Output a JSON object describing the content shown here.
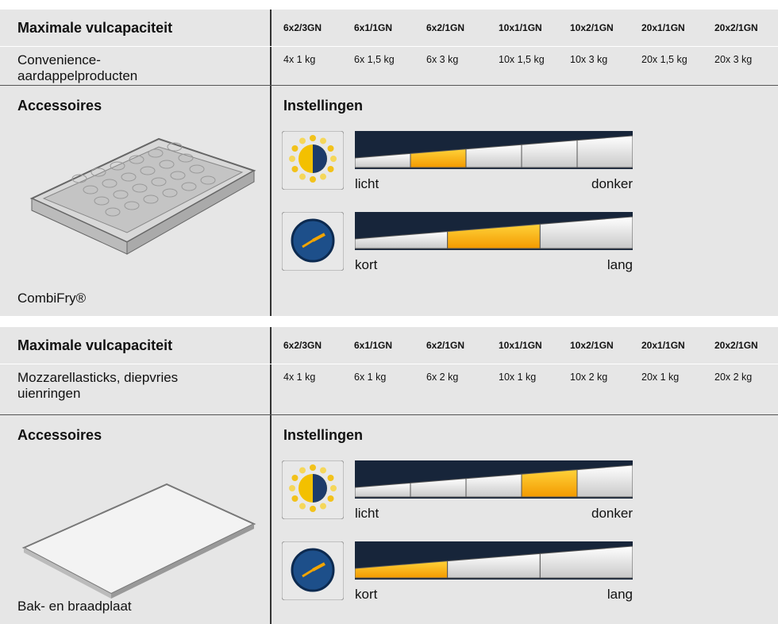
{
  "sections": [
    {
      "capacity": {
        "title": "Maximale vulcapaciteit",
        "columns": [
          "6x2/3GN",
          "6x1/1GN",
          "6x2/1GN",
          "10x1/1GN",
          "10x2/1GN",
          "20x1/1GN",
          "20x2/1GN"
        ],
        "product": "Convenience-aardappelproducten",
        "values": [
          "4x 1 kg",
          "6x 1,5 kg",
          "6x 3 kg",
          "10x 1,5 kg",
          "10x 3 kg",
          "20x 1,5 kg",
          "20x 3 kg"
        ]
      },
      "accessories": {
        "title": "Accessoires",
        "item": "CombiFry®"
      },
      "settings": {
        "title": "Instellingen",
        "browning": {
          "steps": 5,
          "selected": 2,
          "min_label": "licht",
          "max_label": "donker"
        },
        "time": {
          "steps": 3,
          "selected": 2,
          "min_label": "kort",
          "max_label": "lang"
        }
      }
    },
    {
      "capacity": {
        "title": "Maximale vulcapaciteit",
        "columns": [
          "6x2/3GN",
          "6x1/1GN",
          "6x2/1GN",
          "10x1/1GN",
          "10x2/1GN",
          "20x1/1GN",
          "20x2/1GN"
        ],
        "product": "Mozzarellasticks, diepvries uienringen",
        "values": [
          "4x 1 kg",
          "6x 1 kg",
          "6x 2 kg",
          "10x 1 kg",
          "10x 2 kg",
          "20x 1 kg",
          "20x 2 kg"
        ]
      },
      "accessories": {
        "title": "Accessoires",
        "item": "Bak- en braadplaat"
      },
      "settings": {
        "title": "Instellingen",
        "browning": {
          "steps": 5,
          "selected": 4,
          "min_label": "licht",
          "max_label": "donker"
        },
        "time": {
          "steps": 3,
          "selected": 1,
          "min_label": "kort",
          "max_label": "lang"
        }
      }
    }
  ]
}
